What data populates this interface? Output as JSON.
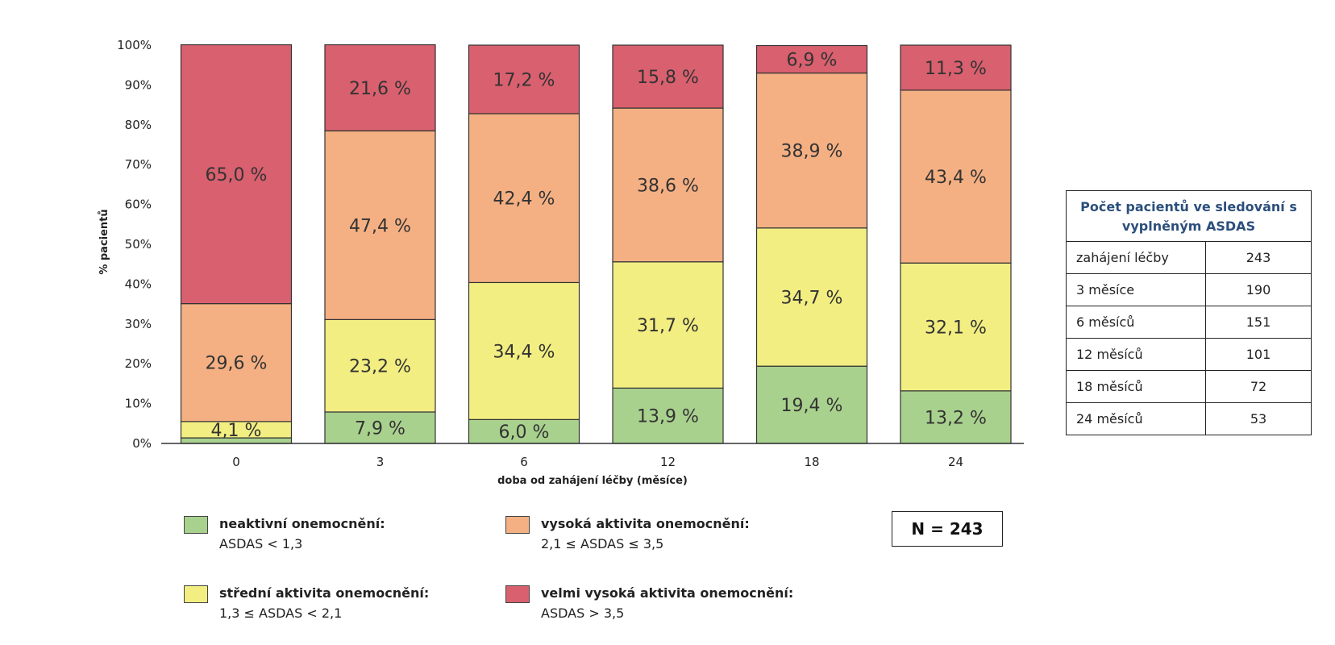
{
  "chart_data": {
    "type": "bar",
    "stacked": true,
    "categories": [
      "0",
      "3",
      "6",
      "12",
      "18",
      "24"
    ],
    "series": [
      {
        "name": "neaktivní onemocnění:",
        "color": "#a9d18e",
        "values": [
          1.4,
          7.9,
          6.0,
          13.9,
          19.4,
          13.2
        ],
        "labels": [
          "",
          "7,9 %",
          "6,0 %",
          "13,9 %",
          "19,4 %",
          "13,2 %"
        ]
      },
      {
        "name": "střední aktivita onemocnění:",
        "color": "#f2ee82",
        "values": [
          4.1,
          23.2,
          34.4,
          31.7,
          34.7,
          32.1
        ],
        "labels": [
          "4,1 %",
          "23,2 %",
          "34,4 %",
          "31,7 %",
          "34,7 %",
          "32,1 %"
        ]
      },
      {
        "name": "vysoká aktivita onemocnění:",
        "color": "#f4b083",
        "values": [
          29.6,
          47.4,
          42.4,
          38.6,
          38.9,
          43.4
        ],
        "labels": [
          "29,6 %",
          "47,4 %",
          "42,4 %",
          "38,6 %",
          "38,9 %",
          "43,4 %"
        ]
      },
      {
        "name": "velmi vysoká aktivita onemocnění:",
        "color": "#d9606f",
        "values": [
          65.0,
          21.6,
          17.2,
          15.8,
          6.9,
          11.3
        ],
        "labels": [
          "65,0 %",
          "21,6 %",
          "17,2 %",
          "15,8 %",
          "6,9 %",
          "11,3 %"
        ]
      }
    ],
    "ylim": [
      0,
      100
    ],
    "yticks": [
      "0%",
      "10%",
      "20%",
      "30%",
      "40%",
      "50%",
      "60%",
      "70%",
      "80%",
      "90%",
      "100%"
    ],
    "xlabel": "doba od zahájení léčby (měsíce)",
    "ylabel": "% pacientů",
    "grid": false,
    "legend_position": "bottom"
  },
  "legend": [
    {
      "title": "neaktivní onemocnění:",
      "sub": "ASDAS < 1,3",
      "color": "#a9d18e"
    },
    {
      "title": "vysoká aktivita onemocnění:",
      "sub": "2,1 ≤ ASDAS ≤ 3,5",
      "color": "#f4b083"
    },
    {
      "title": "střední aktivita onemocnění:",
      "sub": "1,3 ≤ ASDAS < 2,1",
      "color": "#f2ee82"
    },
    {
      "title": "velmi vysoká aktivita onemocnění:",
      "sub": "ASDAS > 3,5",
      "color": "#d9606f"
    }
  ],
  "n_label": "N = 243",
  "table": {
    "header": "Počet pacientů ve sledování s vyplněným ASDAS",
    "rows": [
      {
        "label": "zahájení léčby",
        "value": "243"
      },
      {
        "label": "3 měsíce",
        "value": "190"
      },
      {
        "label": "6 měsíců",
        "value": "151"
      },
      {
        "label": "12 měsíců",
        "value": "101"
      },
      {
        "label": "18 měsíců",
        "value": "72"
      },
      {
        "label": "24 měsíců",
        "value": "53"
      }
    ]
  }
}
